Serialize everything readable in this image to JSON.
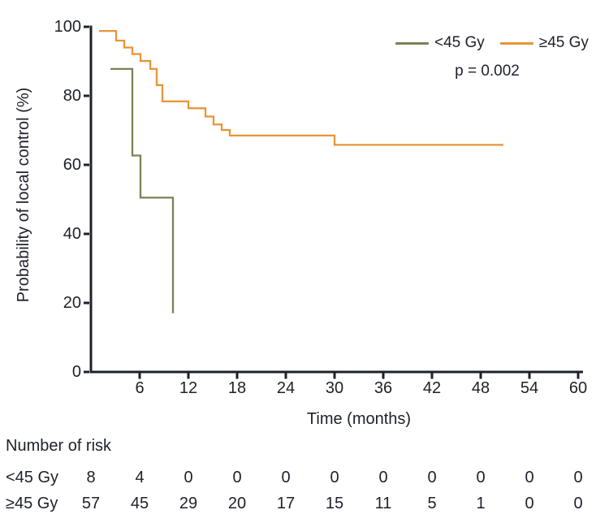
{
  "figure": {
    "p_value": "p = 0.002",
    "text_color": "#1E202B",
    "background": "#ffffff"
  },
  "chart_data": {
    "type": "line",
    "subtype": "kaplan-meier-step",
    "title": "",
    "xlabel": "Time (months)",
    "ylabel": "Probability of local control (%)",
    "xlim": [
      0,
      60
    ],
    "ylim": [
      0,
      100
    ],
    "xticks": [
      "6",
      "12",
      "18",
      "24",
      "30",
      "36",
      "42",
      "48",
      "54",
      "60"
    ],
    "xtick_values": [
      6,
      12,
      18,
      24,
      30,
      36,
      42,
      48,
      54,
      60
    ],
    "yticks": [
      "0",
      "20",
      "40",
      "60",
      "80",
      "100"
    ],
    "ytick_values": [
      0,
      20,
      40,
      60,
      80,
      100
    ],
    "grid": false,
    "legend_position": "top-right",
    "annotation": "p = 0.002",
    "series": [
      {
        "name": "<45 Gy",
        "color": "#7D8155",
        "start": [
          2.4,
          87.8
        ],
        "steps": [
          [
            5.1,
            62.7
          ],
          [
            6.1,
            50.5
          ],
          [
            10.1,
            17.0
          ]
        ],
        "end_time": 10.1
      },
      {
        "name": "≥45 Gy",
        "color": "#E8953A",
        "start": [
          1.0,
          98.8
        ],
        "steps": [
          [
            3.1,
            96.0
          ],
          [
            4.1,
            94.0
          ],
          [
            5.1,
            92.1
          ],
          [
            6.1,
            90.1
          ],
          [
            7.3,
            87.8
          ],
          [
            8.1,
            83.1
          ],
          [
            8.8,
            78.4
          ],
          [
            12.0,
            76.4
          ],
          [
            14.1,
            74.0
          ],
          [
            15.1,
            71.7
          ],
          [
            16.1,
            70.1
          ],
          [
            17.1,
            68.5
          ],
          [
            30.0,
            65.8
          ]
        ],
        "end_time": 50.8
      }
    ]
  },
  "risk_table": {
    "heading": "Number of risk",
    "times": [
      0,
      6,
      12,
      18,
      24,
      30,
      36,
      42,
      48,
      54,
      60
    ],
    "rows": [
      {
        "label": "<45 Gy",
        "counts": [
          "8",
          "4",
          "0",
          "0",
          "0",
          "0",
          "0",
          "0",
          "0",
          "0",
          "0"
        ]
      },
      {
        "label": "≥45 Gy",
        "counts": [
          "57",
          "45",
          "29",
          "20",
          "17",
          "15",
          "11",
          "5",
          "1",
          "0",
          "0"
        ]
      }
    ]
  }
}
